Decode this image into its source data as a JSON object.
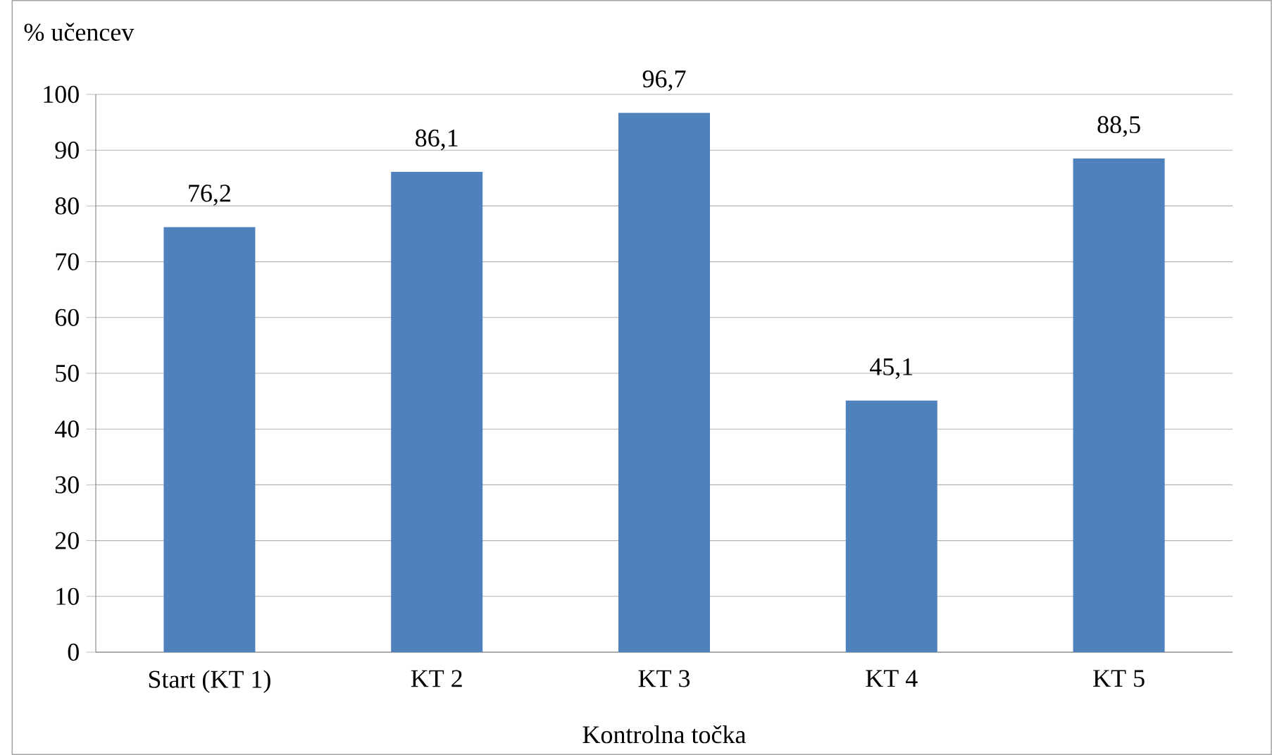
{
  "chart_data": {
    "type": "bar",
    "xlabel": "Kontrolna točka",
    "ylabel": "% učencev",
    "categories": [
      "Start (KT 1)",
      "KT 2",
      "KT 3",
      "KT 4",
      "KT 5"
    ],
    "values": [
      76.2,
      86.1,
      96.7,
      45.1,
      88.5
    ],
    "value_labels": [
      "76,2",
      "86,1",
      "96,7",
      "45,1",
      "88,5"
    ],
    "color": "#4f81bd",
    "ylim": [
      0,
      100
    ],
    "yticks": [
      0,
      10,
      20,
      30,
      40,
      50,
      60,
      70,
      80,
      90,
      100
    ],
    "grid": "y"
  }
}
